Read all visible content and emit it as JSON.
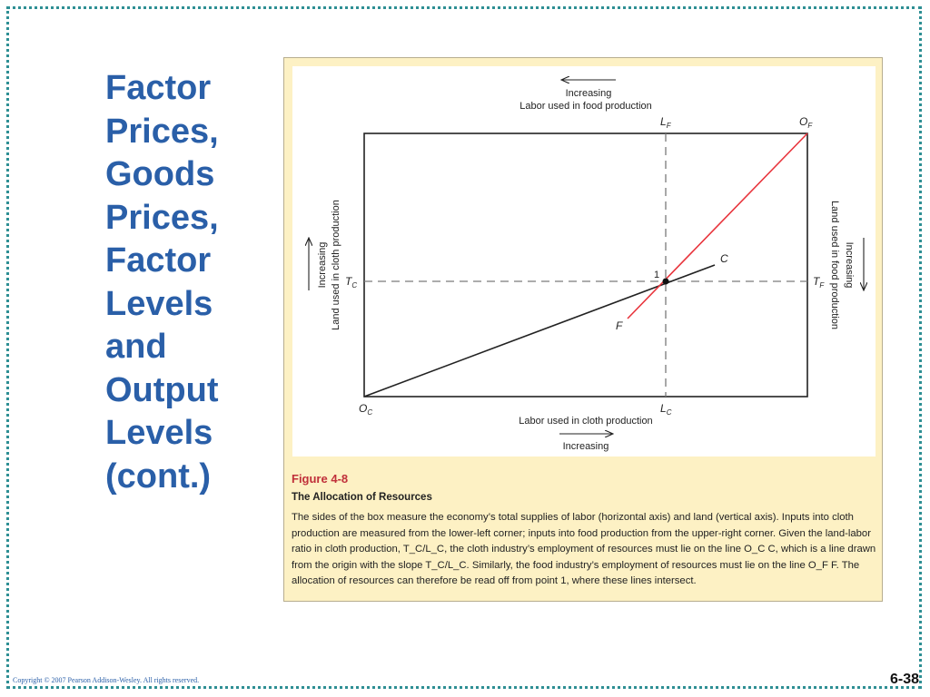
{
  "slide": {
    "title_lines": [
      "Factor",
      "Prices,",
      "Goods",
      "Prices,",
      "Factor",
      "Levels",
      "and",
      "Output",
      "Levels",
      "(cont.)"
    ],
    "copyright": "Copyright © 2007 Pearson Addison-Wesley. All rights reserved.",
    "slide_number": "6-38"
  },
  "figure": {
    "number": "Figure 4-8",
    "heading": "The Allocation of Resources",
    "body": "The sides of the box measure the economy’s total supplies of labor (horizontal axis) and land (vertical axis). Inputs into cloth production are measured from the lower-left corner; inputs into food production from the upper-right corner. Given the land-labor ratio in cloth production, T_C/L_C, the cloth industry’s employment of resources must lie on the line O_C C, which is a line drawn from the origin with the slope T_C/L_C. Similarly, the food industry’s employment of resources must lie on the line O_F F. The allocation of resources can therefore be read off from point 1, where these lines intersect."
  },
  "diagram": {
    "top_increasing": "Increasing",
    "top_axis_label": "Labor used in food production",
    "bottom_axis_label": "Labor used in cloth production",
    "bottom_increasing": "Increasing",
    "left_increasing": "Increasing",
    "left_axis_label": "Land used in cloth production",
    "right_increasing": "Increasing",
    "right_axis_label": "Land used in food production",
    "label_LF": "L",
    "label_LF_sub": "F",
    "label_OF": "O",
    "label_OF_sub": "F",
    "label_TC": "T",
    "label_TC_sub": "C",
    "label_TF": "T",
    "label_TF_sub": "F",
    "label_OC": "O",
    "label_OC_sub": "C",
    "label_LC": "L",
    "label_LC_sub": "C",
    "label_C": "C",
    "label_F": "F",
    "point_label": "1",
    "colors": {
      "food_line": "#e8343c",
      "cloth_line": "#222222",
      "box": "#222222",
      "dashed": "#7a7a7a"
    }
  }
}
